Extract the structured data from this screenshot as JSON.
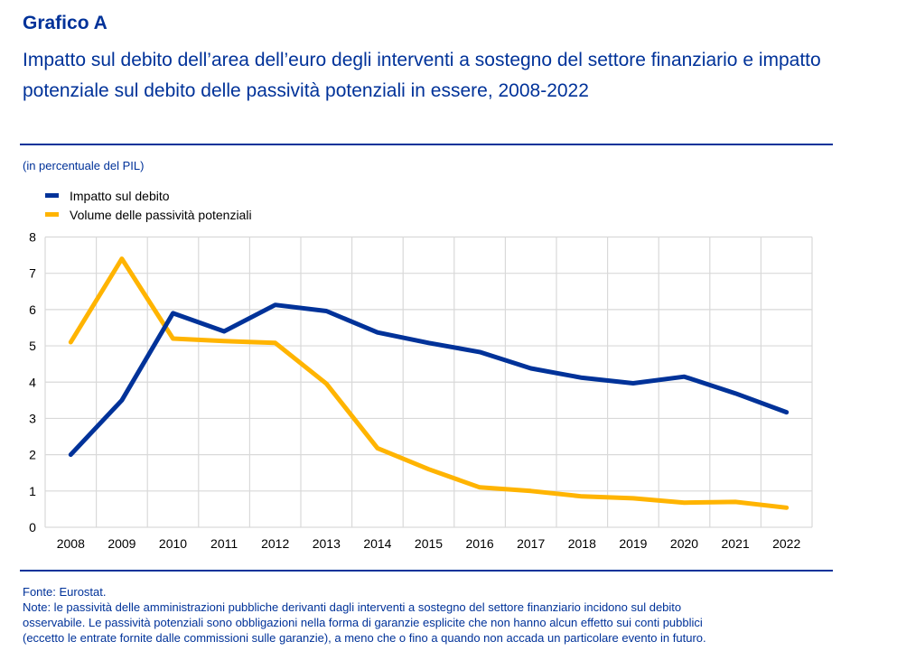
{
  "header": {
    "kicker": "Grafico A",
    "title": "Impatto sul debito dell’area dell’euro degli interventi a sostegno del settore finanziario e impatto potenziale sul debito delle passività potenziali in essere, 2008-2022",
    "unit": "(in percentuale del PIL)"
  },
  "colors": {
    "brand": "#003299",
    "series_debt": "#003299",
    "series_contingent": "#FFB400",
    "grid": "#d9d9d9"
  },
  "chart_data": {
    "type": "line",
    "title": "Impatto sul debito dell’area dell’euro degli interventi a sostegno del settore finanziario e impatto potenziale sul debito delle passività potenziali in essere, 2008-2022",
    "xlabel": "",
    "ylabel": "(in percentuale del PIL)",
    "ylim": [
      0,
      8
    ],
    "yticks": [
      "0",
      "1",
      "2",
      "3",
      "4",
      "5",
      "6",
      "7",
      "8"
    ],
    "grid": true,
    "legend_position": "top-left",
    "categories": [
      "2008",
      "2009",
      "2010",
      "2011",
      "2012",
      "2013",
      "2014",
      "2015",
      "2016",
      "2017",
      "2018",
      "2019",
      "2020",
      "2021",
      "2022"
    ],
    "series": [
      {
        "name": "Impatto sul debito",
        "color": "#003299",
        "values": [
          2.0,
          3.5,
          5.9,
          5.4,
          6.13,
          5.96,
          5.37,
          5.08,
          4.83,
          4.38,
          4.12,
          3.97,
          4.15,
          3.69,
          3.17
        ]
      },
      {
        "name": "Volume delle passività potenziali",
        "color": "#FFB400",
        "values": [
          5.1,
          7.4,
          5.2,
          5.13,
          5.08,
          3.96,
          2.18,
          1.6,
          1.1,
          1.0,
          0.85,
          0.8,
          0.68,
          0.7,
          0.54
        ]
      }
    ]
  },
  "footer": {
    "source": "Fonte: Eurostat.",
    "note_line1": "Note: le passività delle amministrazioni pubbliche derivanti dagli interventi a sostegno del settore finanziario incidono sul debito",
    "note_line2": "osservabile. Le passività potenziali sono obbligazioni nella forma di garanzie esplicite che non hanno alcun effetto sui conti pubblici",
    "note_line3": "(eccetto le entrate fornite dalle commissioni sulle garanzie), a meno che o fino a quando non accada un particolare evento in futuro."
  }
}
